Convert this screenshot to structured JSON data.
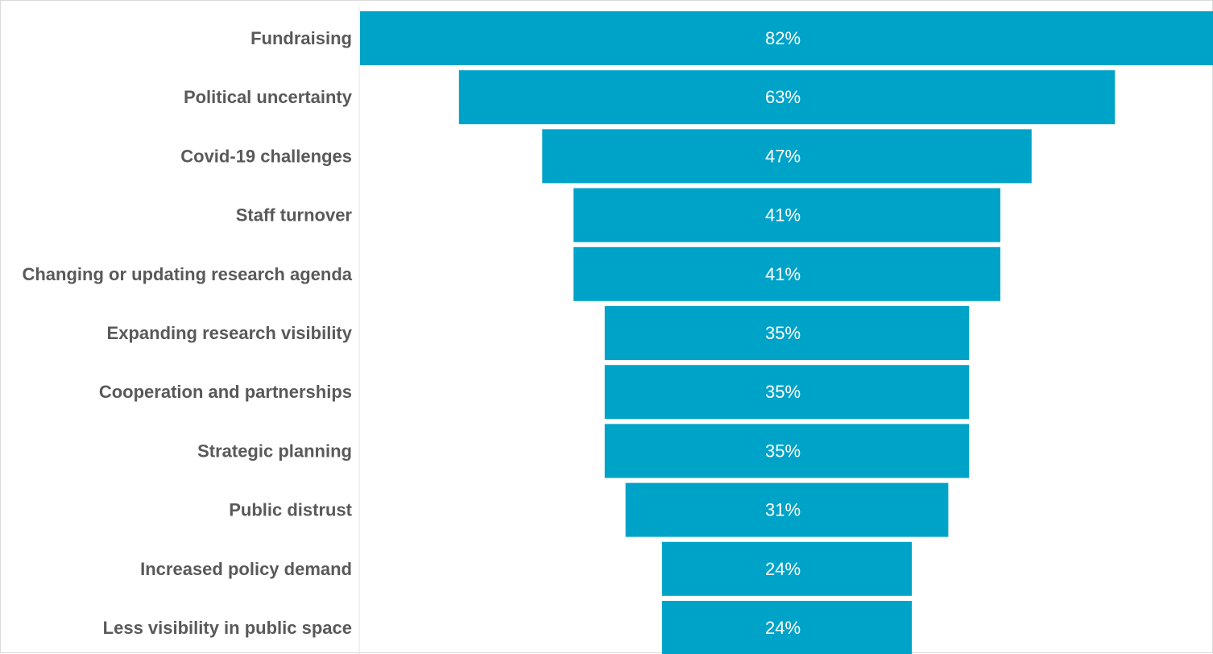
{
  "chart_data": {
    "type": "bar",
    "orientation": "horizontal",
    "style": "funnel",
    "categories": [
      "Fundraising",
      "Political uncertainty",
      "Covid-19 challenges",
      "Staff turnover",
      "Changing or updating research agenda",
      "Expanding research visibility",
      "Cooperation and partnerships",
      "Strategic planning",
      "Public distrust",
      "Increased policy demand",
      "Less visibility in public space"
    ],
    "values": [
      82,
      63,
      47,
      41,
      41,
      35,
      35,
      35,
      31,
      24,
      24
    ],
    "value_labels": [
      "82%",
      "63%",
      "47%",
      "41%",
      "41%",
      "35%",
      "35%",
      "35%",
      "31%",
      "24%",
      "24%"
    ],
    "unit": "%",
    "xlim": [
      0,
      82
    ],
    "grid": false,
    "legend": "none",
    "title": "",
    "xlabel": "",
    "ylabel": ""
  },
  "colors": {
    "bar": "#00A3C8",
    "label": "#595959",
    "value_label": "#FFFFFF"
  }
}
